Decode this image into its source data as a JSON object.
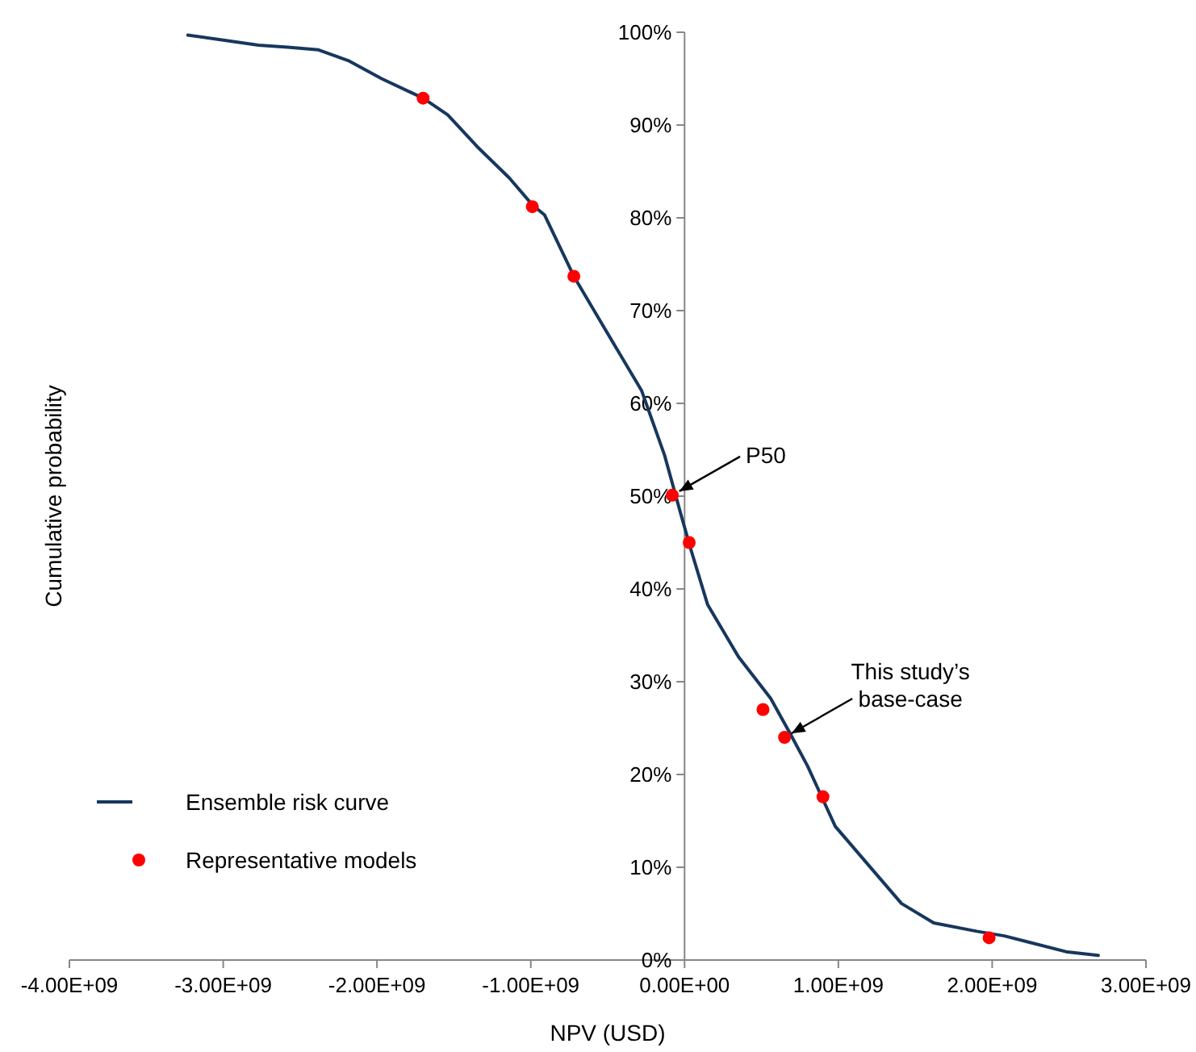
{
  "chart_data": {
    "type": "line",
    "xlabel": "NPV (USD)",
    "ylabel": "Cumulative probability",
    "xlim": [
      -4000000000,
      3000000000
    ],
    "xticks": [
      {
        "value": -4000000000,
        "label": "-4.00E+09"
      },
      {
        "value": -3000000000,
        "label": "-3.00E+09"
      },
      {
        "value": -2000000000,
        "label": "-2.00E+09"
      },
      {
        "value": -1000000000,
        "label": "-1.00E+09"
      },
      {
        "value": 0,
        "label": "0.00E+00"
      },
      {
        "value": 1000000000,
        "label": "1.00E+09"
      },
      {
        "value": 2000000000,
        "label": "2.00E+09"
      },
      {
        "value": 3000000000,
        "label": "3.00E+09"
      }
    ],
    "ylim": [
      0,
      100
    ],
    "yticks": [
      {
        "value": 0,
        "label": "0%"
      },
      {
        "value": 10,
        "label": "10%"
      },
      {
        "value": 20,
        "label": "20%"
      },
      {
        "value": 30,
        "label": "30%"
      },
      {
        "value": 40,
        "label": "40%"
      },
      {
        "value": 50,
        "label": "50%"
      },
      {
        "value": 60,
        "label": "60%"
      },
      {
        "value": 70,
        "label": "70%"
      },
      {
        "value": 80,
        "label": "80%"
      },
      {
        "value": 90,
        "label": "90%"
      },
      {
        "value": 100,
        "label": "100%"
      }
    ],
    "grid": false,
    "legend": "bottom left",
    "series": [
      {
        "name": "Ensemble risk curve",
        "color": "#17375e",
        "marker": "none",
        "line_style": "solid",
        "x": [
          -3230000000,
          -2980000000,
          -2770000000,
          -2580000000,
          -2380000000,
          -2180000000,
          -1970000000,
          -1700000000,
          -1540000000,
          -1350000000,
          -1140000000,
          -990000000,
          -910000000,
          -720000000,
          -510000000,
          -280000000,
          -130000000,
          -20000000,
          40000000,
          150000000,
          350000000,
          560000000,
          690000000,
          800000000,
          980000000,
          1410000000,
          1620000000,
          1900000000,
          2080000000,
          2480000000,
          2690000000
        ],
        "values": [
          99.7,
          99.1,
          98.6,
          98.4,
          98.1,
          96.9,
          95,
          92.9,
          91.1,
          87.7,
          84.3,
          81.4,
          80.3,
          73.7,
          67.8,
          61.4,
          54.4,
          47.8,
          44.3,
          38.3,
          32.7,
          28.2,
          24.3,
          20.9,
          14.4,
          6.1,
          4,
          3.1,
          2.6,
          0.9,
          0.5
        ]
      },
      {
        "name": "Representative models",
        "type": "scatter",
        "color": "#ff0000",
        "marker": "circle",
        "x": [
          -1700000000,
          -990000000,
          -720000000,
          -80000000,
          30000000,
          510000000,
          650000000,
          900000000,
          1980000000
        ],
        "values": [
          92.9,
          81.2,
          73.7,
          50.1,
          45,
          27,
          24,
          17.6,
          2.4
        ]
      }
    ],
    "annotations": [
      {
        "text": "P50",
        "x": -80000000,
        "y": 50.1
      },
      {
        "text": "This study’s base-case",
        "x": 650000000,
        "y": 24
      }
    ]
  }
}
